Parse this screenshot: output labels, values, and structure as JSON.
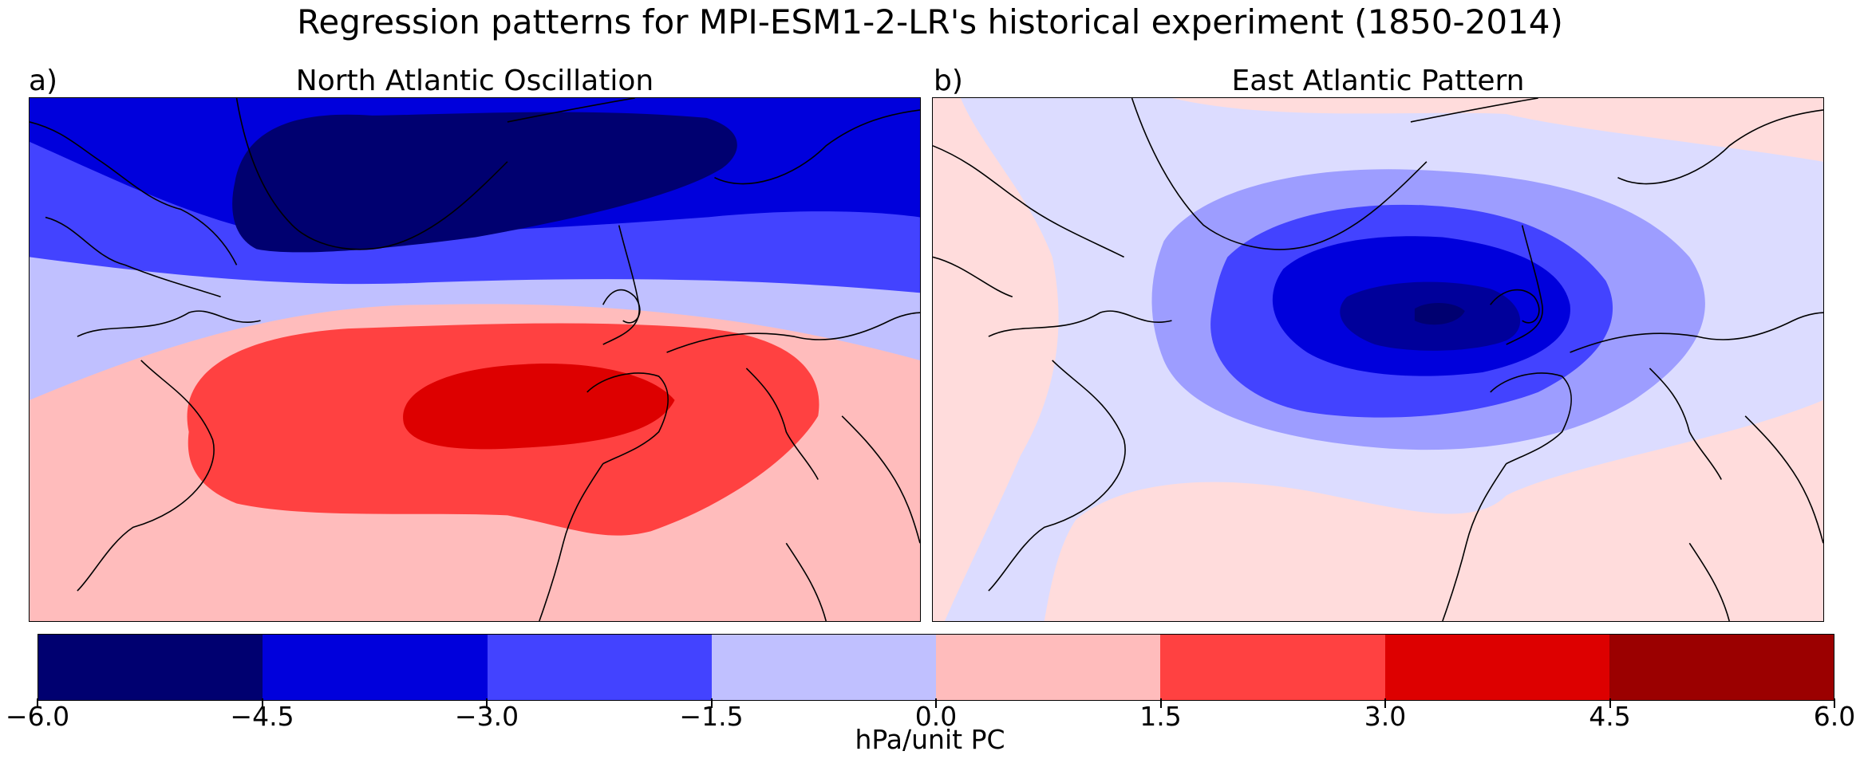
{
  "figure": {
    "title": "Regression patterns for MPI-ESM1-2-LR's historical experiment (1850-2014)"
  },
  "panels": [
    {
      "letter": "a)",
      "title": "North Atlantic Oscillation",
      "pattern": "dipole",
      "summary": "Negative pressure anomalies over Greenland/Iceland (down to -4.5 to -6.0 hPa), positive anomalies over the Azores and Iberia (3.0 to 4.5 hPa)"
    },
    {
      "letter": "b)",
      "title": "East Atlantic Pattern",
      "pattern": "monopole",
      "summary": "Single negative centre west of the British Isles (down to -4.5 to -6.0 hPa), weak positive anomalies at the margins (0 to 1.5 hPa)"
    }
  ],
  "colorbar": {
    "label": "hPa/unit PC",
    "levels": [
      -6.0,
      -4.5,
      -3.0,
      -1.5,
      0.0,
      1.5,
      3.0,
      4.5,
      6.0
    ],
    "tick_labels": [
      "−6.0",
      "−4.5",
      "−3.0",
      "−1.5",
      "0.0",
      "1.5",
      "3.0",
      "4.5",
      "6.0"
    ],
    "colors": [
      "#000070",
      "#0000dc",
      "#4343ff",
      "#c0c0ff",
      "#ffbcbc",
      "#ff4141",
      "#dd0000",
      "#9b0000"
    ]
  },
  "colors": {
    "coastline": "#000000",
    "light_red_b": "#ffdcdc",
    "light_blue_b": "#dcdcff",
    "mid_blue_b": "#9d9dff"
  }
}
